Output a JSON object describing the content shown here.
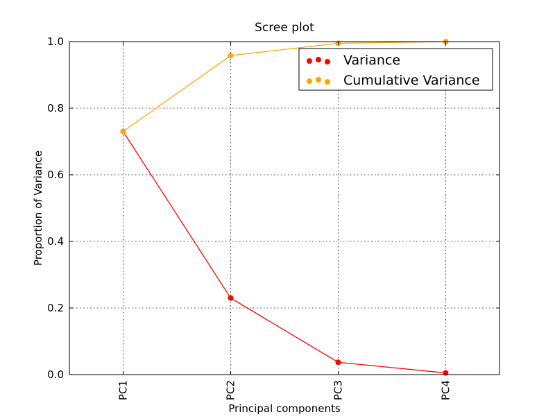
{
  "chart_data": {
    "type": "line",
    "title": "Scree plot",
    "xlabel": "Principal components",
    "ylabel": "Proportion of Variance",
    "categories": [
      "PC1",
      "PC2",
      "PC3",
      "PC4"
    ],
    "ylim": [
      0.0,
      1.0
    ],
    "yticks": [
      "0.0",
      "0.2",
      "0.4",
      "0.6",
      "0.8",
      "1.0"
    ],
    "grid": true,
    "legend_position": "top-right",
    "series": [
      {
        "name": "Variance",
        "color": "#ff0000",
        "values": [
          0.73,
          0.23,
          0.037,
          0.005
        ]
      },
      {
        "name": "Cumulative Variance",
        "color": "#ffa500",
        "values": [
          0.73,
          0.958,
          0.995,
          1.0
        ]
      }
    ]
  }
}
